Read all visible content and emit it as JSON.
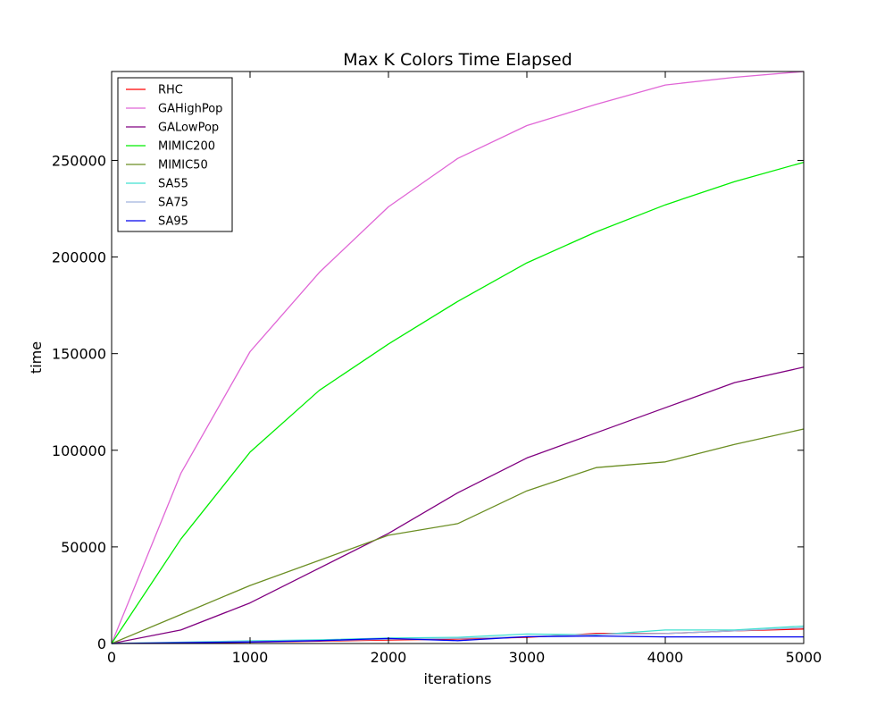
{
  "chart_data": {
    "type": "line",
    "title": "Max K Colors Time Elapsed",
    "xlabel": "iterations",
    "ylabel": "time",
    "xlim": [
      0,
      5000
    ],
    "ylim": [
      0,
      296000
    ],
    "xticks": [
      0,
      1000,
      2000,
      3000,
      4000,
      5000
    ],
    "yticks": [
      0,
      50000,
      100000,
      150000,
      200000,
      250000
    ],
    "grid": false,
    "legend_position": "top-left",
    "x": [
      0,
      500,
      1000,
      1500,
      2000,
      2500,
      3000,
      3500,
      4000,
      4500,
      5000
    ],
    "series": [
      {
        "name": "RHC",
        "color": "#ff0000",
        "values": [
          0,
          300,
          700,
          1200,
          1800,
          2300,
          3200,
          5200,
          5200,
          6500,
          7500
        ]
      },
      {
        "name": "GAHighPop",
        "color": "#e066d6",
        "values": [
          0,
          88000,
          151000,
          192000,
          226000,
          251000,
          268000,
          279000,
          289000,
          293000,
          296000
        ]
      },
      {
        "name": "GALowPop",
        "color": "#800080",
        "values": [
          0,
          7000,
          21000,
          39000,
          57000,
          78000,
          96000,
          109000,
          122000,
          135000,
          143000
        ]
      },
      {
        "name": "MIMIC200",
        "color": "#00ee00",
        "values": [
          0,
          54000,
          99000,
          131000,
          155000,
          177000,
          197000,
          213000,
          227000,
          239000,
          249000
        ]
      },
      {
        "name": "MIMIC50",
        "color": "#6b8e23",
        "values": [
          0,
          15000,
          30000,
          43000,
          56000,
          62000,
          79000,
          91000,
          94000,
          103000,
          111000
        ]
      },
      {
        "name": "SA55",
        "color": "#40e0d0",
        "values": [
          0,
          700,
          1400,
          1900,
          2800,
          3200,
          4900,
          4500,
          7000,
          7000,
          9000
        ]
      },
      {
        "name": "SA75",
        "color": "#a0b4de",
        "values": [
          0,
          500,
          1000,
          1500,
          2200,
          2700,
          3500,
          4700,
          5200,
          6500,
          8200
        ]
      },
      {
        "name": "SA95",
        "color": "#0000ee",
        "values": [
          0,
          400,
          800,
          1500,
          2600,
          1500,
          3500,
          3900,
          3400,
          3400,
          3400
        ]
      }
    ]
  }
}
